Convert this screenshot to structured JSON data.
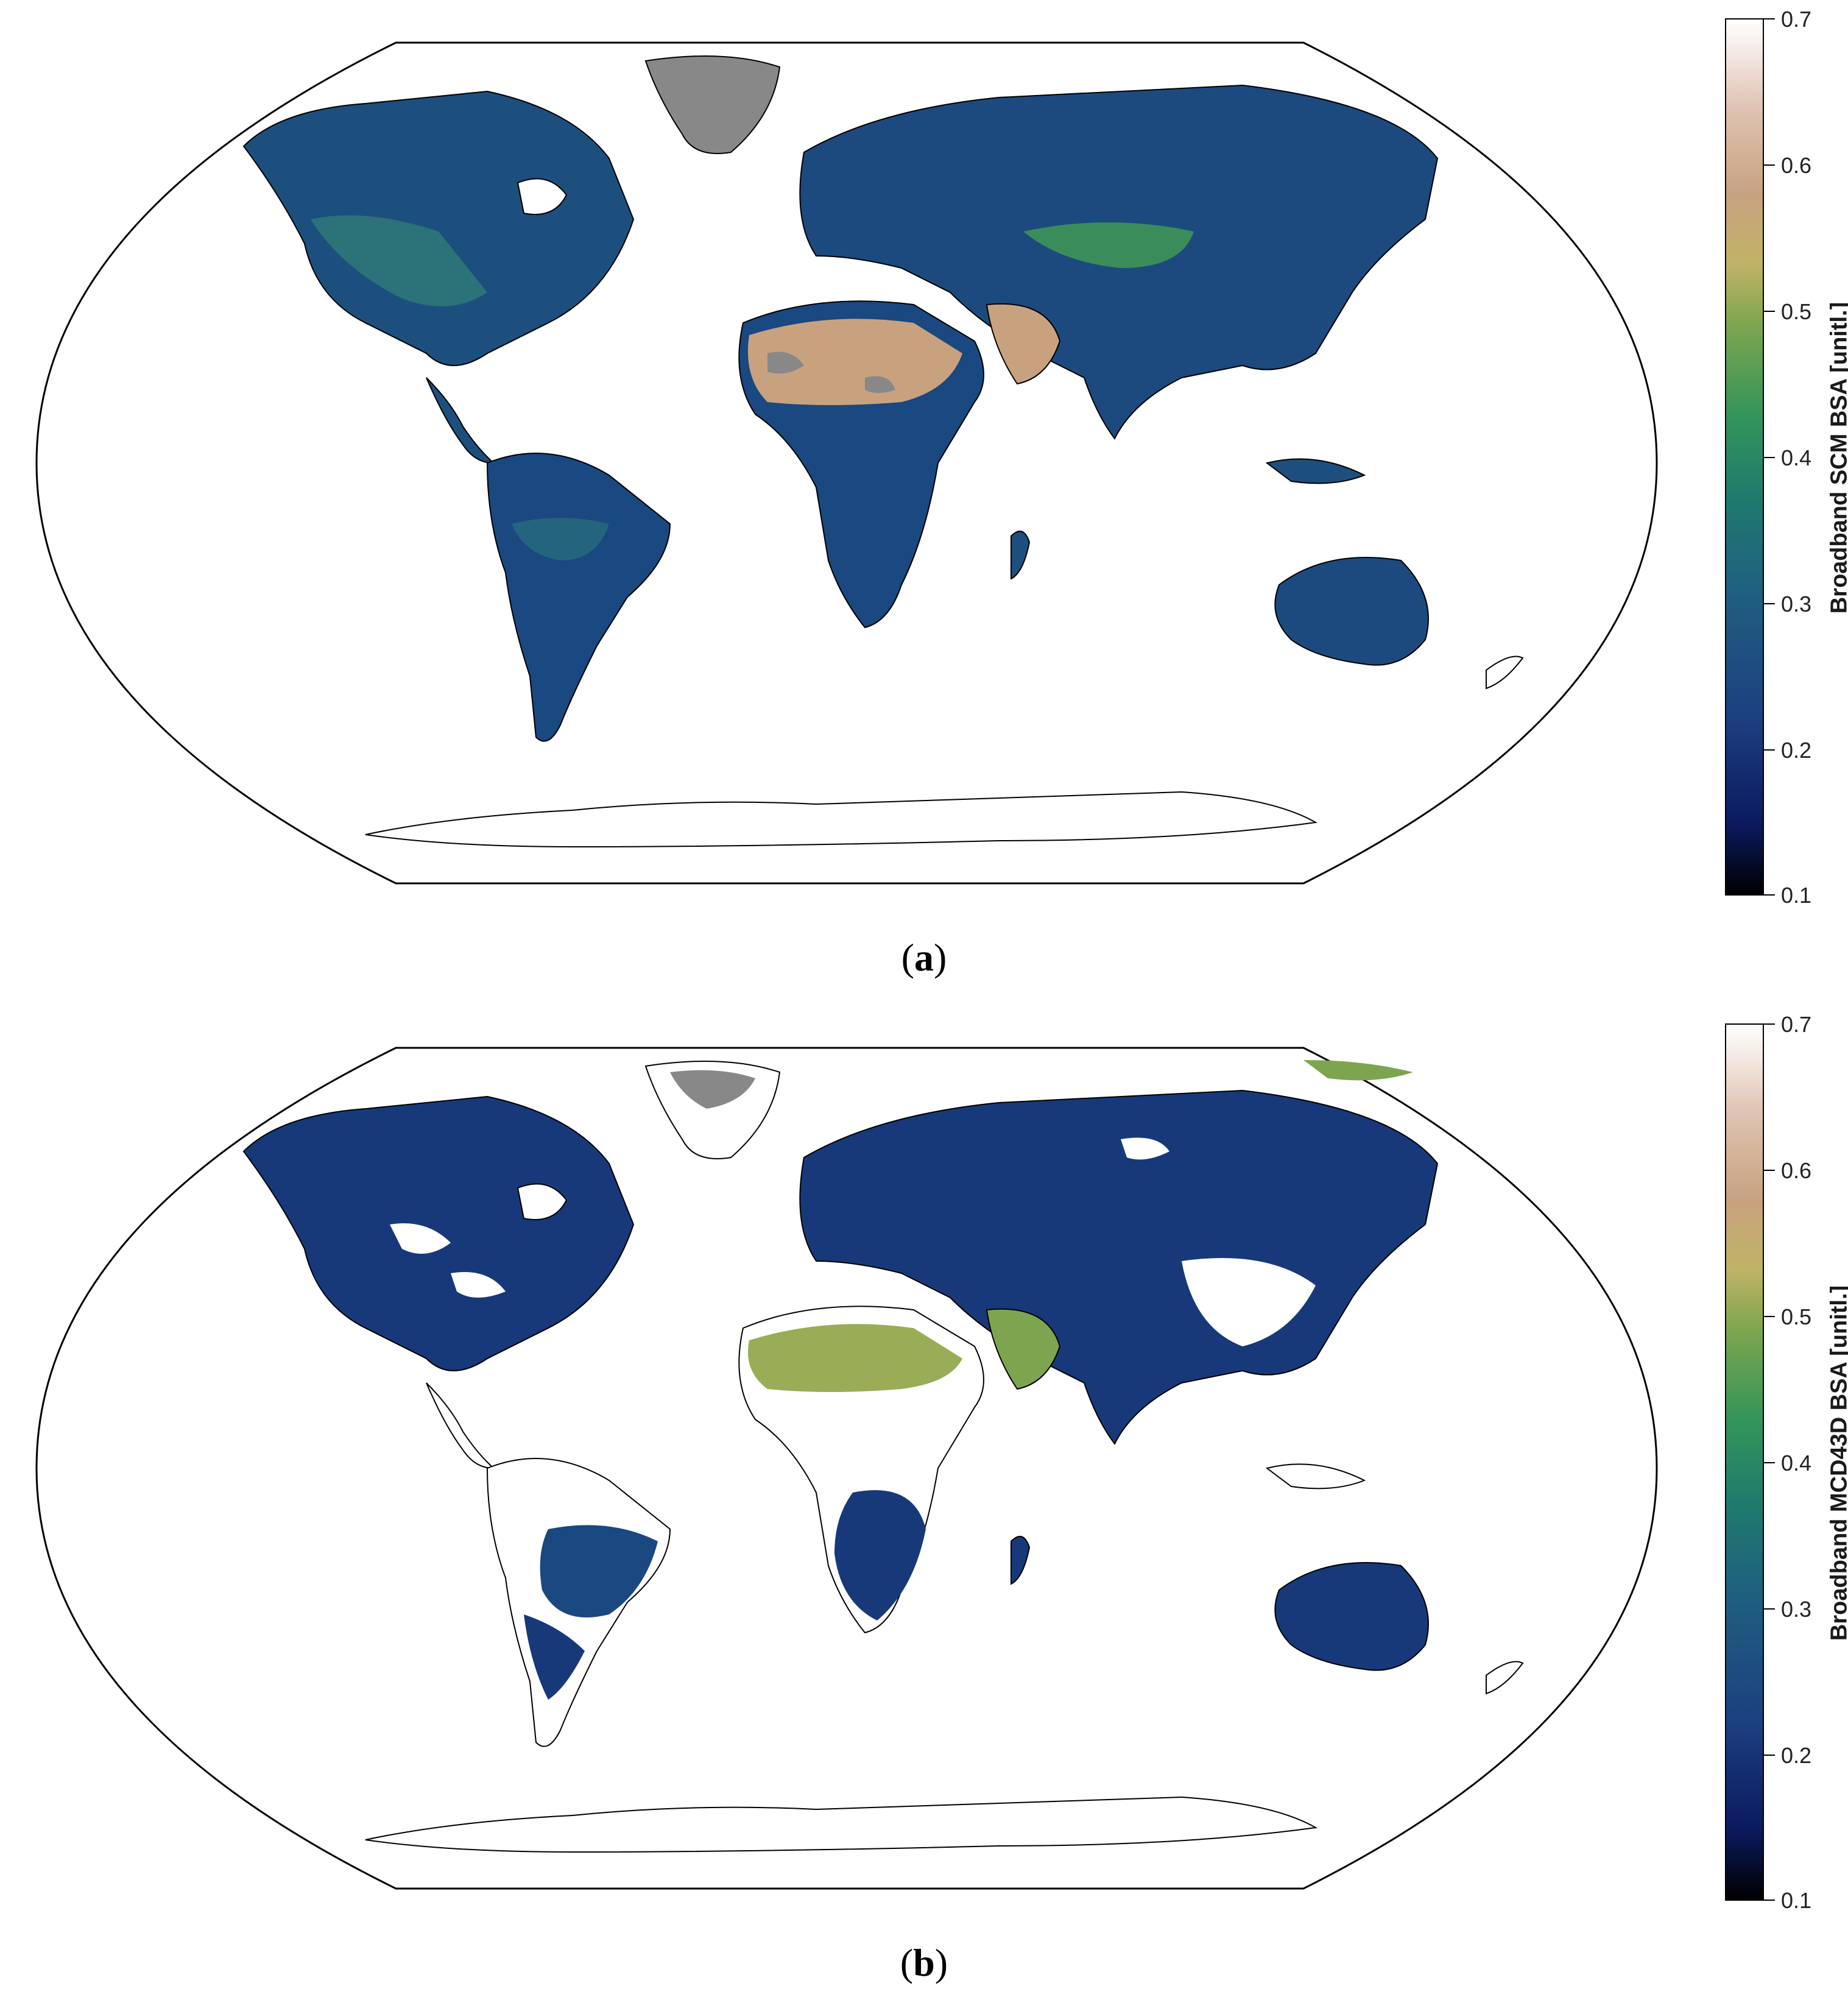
{
  "colormap": {
    "stops": [
      "#000000",
      "#0b1a5e",
      "#1c3f80",
      "#1f6080",
      "#1f7a6e",
      "#35955a",
      "#7da54f",
      "#c0b365",
      "#c8a27f",
      "#e0c3b3",
      "#ffffff"
    ],
    "nodata_color": "#888888",
    "coastline_color": "#000000"
  },
  "panels": [
    {
      "id": "a",
      "caption_open": "(",
      "caption_letter": "a",
      "caption_close": ")",
      "colorbar": {
        "title": "Broadband SCM BSA [unitl.]",
        "ticks": [
          "0.7",
          "0.6",
          "0.5",
          "0.4",
          "0.3",
          "0.2",
          "0.1"
        ],
        "range": [
          0.1,
          0.7
        ]
      }
    },
    {
      "id": "b",
      "caption_open": "(",
      "caption_letter": "b",
      "caption_close": ")",
      "colorbar": {
        "title": "Broadband MCD43D BSA [unitl.]",
        "ticks": [
          "0.7",
          "0.6",
          "0.5",
          "0.4",
          "0.3",
          "0.2",
          "0.1"
        ],
        "range": [
          0.1,
          0.7
        ]
      }
    }
  ]
}
